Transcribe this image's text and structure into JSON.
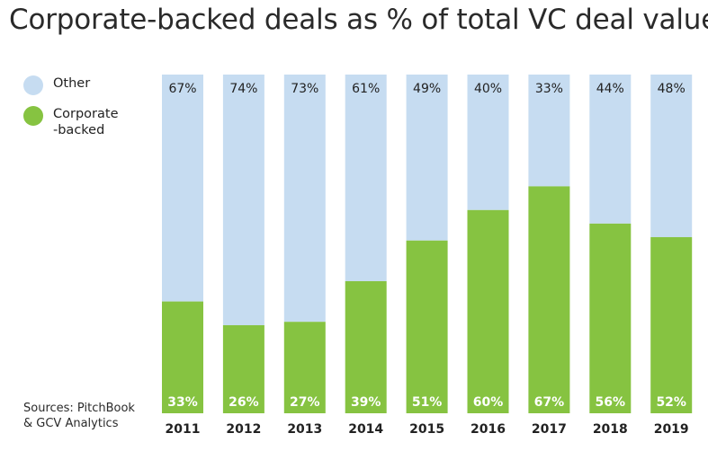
{
  "chart_data": {
    "type": "bar",
    "stacked": true,
    "title": "Corporate-backed deals as % of total VC deal value",
    "categories": [
      "2011",
      "2012",
      "2013",
      "2014",
      "2015",
      "2016",
      "2017",
      "2018",
      "2019"
    ],
    "series": [
      {
        "name": "Corporate -backed",
        "color": "#86c341",
        "values": [
          33,
          26,
          27,
          39,
          51,
          60,
          67,
          56,
          52
        ],
        "labels": [
          "33%",
          "26%",
          "27%",
          "39%",
          "51%",
          "60%",
          "67%",
          "56%",
          "52%"
        ]
      },
      {
        "name": "Other",
        "color": "#c6dcf1",
        "values": [
          67,
          74,
          73,
          61,
          49,
          40,
          33,
          44,
          48
        ],
        "labels": [
          "67%",
          "74%",
          "73%",
          "61%",
          "49%",
          "40%",
          "33%",
          "44%",
          "48%"
        ]
      }
    ],
    "ylim": [
      0,
      100
    ],
    "legend": [
      {
        "label": "Other",
        "color": "#c6dcf1"
      },
      {
        "label": "Corporate\n-backed",
        "label_lines": [
          "Corporate",
          "-backed"
        ],
        "color": "#86c341"
      }
    ],
    "legend_position": "left",
    "source_lines": [
      "Sources: PitchBook",
      "& GCV Analytics"
    ]
  }
}
